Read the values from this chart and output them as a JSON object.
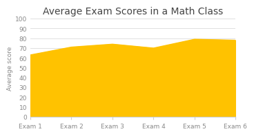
{
  "title": "Average Exam Scores in a Math Class",
  "xlabel": "",
  "ylabel": "Average score",
  "x_labels": [
    "Exam 1",
    "Exam 2",
    "Exam 3",
    "Exam 4",
    "Exam 5",
    "Exam 6"
  ],
  "x_values": [
    0,
    1,
    2,
    3,
    4,
    5
  ],
  "y_values": [
    63,
    71,
    74,
    70,
    79,
    78
  ],
  "ylim": [
    0,
    100
  ],
  "yticks": [
    0,
    10,
    20,
    30,
    40,
    50,
    60,
    70,
    80,
    90,
    100
  ],
  "area_color": "#FFC200",
  "line_color": "#FFC200",
  "background_color": "#ffffff",
  "grid_color": "#e0e0e0",
  "title_fontsize": 10,
  "ylabel_fontsize": 6.5,
  "tick_fontsize": 6.5,
  "tick_color": "#888888",
  "title_color": "#444444"
}
